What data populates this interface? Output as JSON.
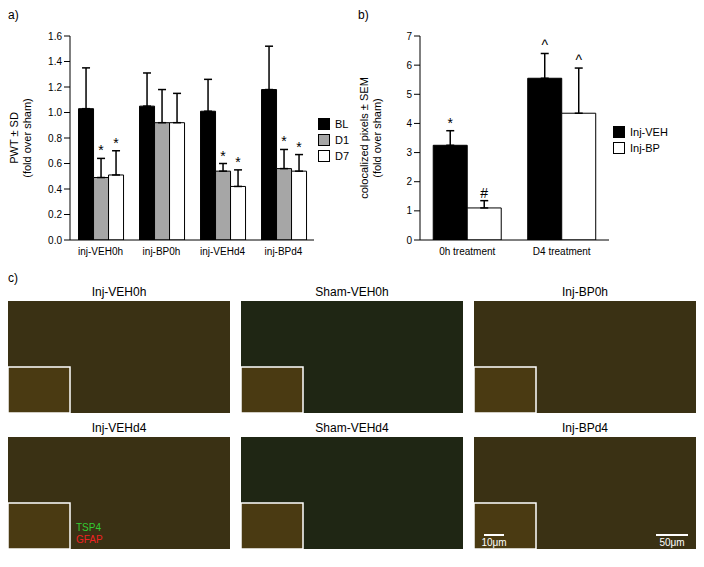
{
  "chart_data": [
    {
      "type": "bar",
      "title": "a)",
      "y_label": [
        "PWT ± SD",
        "(fold over sham)"
      ],
      "categories": [
        "inj-VEH0h",
        "inj-BP0h",
        "inj-VEHd4",
        "inj-BPd4"
      ],
      "series": [
        {
          "name": "BL",
          "color": "#000000",
          "values": [
            1.03,
            1.05,
            1.01,
            1.18
          ],
          "errors": [
            0.32,
            0.26,
            0.25,
            0.34
          ]
        },
        {
          "name": "D1",
          "color": "#a6a6a6",
          "values": [
            0.49,
            0.92,
            0.54,
            0.56
          ],
          "errors": [
            0.15,
            0.26,
            0.06,
            0.15
          ],
          "annotations": [
            "*",
            null,
            "*",
            "*"
          ]
        },
        {
          "name": "D7",
          "color": "#ffffff",
          "values": [
            0.51,
            0.92,
            0.42,
            0.54
          ],
          "errors": [
            0.19,
            0.23,
            0.13,
            0.13
          ],
          "annotations": [
            "*",
            null,
            "*",
            "*"
          ]
        }
      ],
      "ylim": [
        0,
        1.6
      ],
      "yticks": [
        {
          "value": 0,
          "label": "0.0"
        },
        0.2,
        0.4,
        0.6,
        0.8,
        {
          "value": 1,
          "label": "1.0"
        },
        1.2,
        1.4,
        1.6
      ],
      "legend": "right"
    },
    {
      "type": "bar",
      "title": "b)",
      "y_label": [
        "colocalized pixels ± SEM",
        "(fold over sham)"
      ],
      "categories": [
        "0h treatment",
        "D4 treatment"
      ],
      "series": [
        {
          "name": "Inj-VEH",
          "color": "#000000",
          "values": [
            3.25,
            5.55
          ],
          "errors": [
            0.5,
            0.85
          ],
          "annotations": [
            "*",
            "^"
          ]
        },
        {
          "name": "Inj-BP",
          "color": "#ffffff",
          "values": [
            1.1,
            4.35
          ],
          "errors": [
            0.25,
            1.55
          ],
          "annotations": [
            "#",
            "^"
          ]
        }
      ],
      "ylim": [
        0,
        7
      ],
      "yticks": [
        0,
        1,
        2,
        3,
        4,
        5,
        6,
        7
      ],
      "legend": "right"
    }
  ],
  "image_panel": {
    "label": "c)",
    "images": [
      "Inj-VEH0h",
      "Sham-VEH0h",
      "Inj-BP0h",
      "Inj-VEHd4",
      "Sham-VEHd4",
      "Inj-BPd4"
    ],
    "channels": [
      {
        "name": "TSP4",
        "color": "#33cc33"
      },
      {
        "name": "GFAP",
        "color": "#ee2222"
      }
    ],
    "scale_bars": [
      "10μm",
      "50μm"
    ]
  }
}
